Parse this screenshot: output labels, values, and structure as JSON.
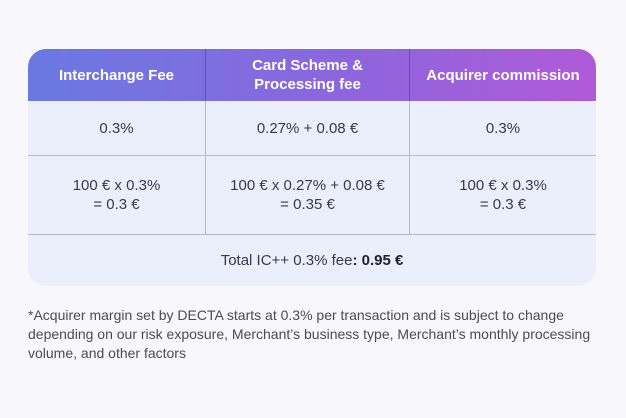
{
  "table": {
    "headers": [
      {
        "line1": "Interchange Fee",
        "line2": ""
      },
      {
        "line1": "Card Scheme &",
        "line2": "Processing fee"
      },
      {
        "line1": "Acquirer commission",
        "line2": ""
      }
    ],
    "rows": [
      [
        {
          "line1": "0.3%",
          "line2": ""
        },
        {
          "line1": "0.27% + 0.08 €",
          "line2": ""
        },
        {
          "line1": "0.3%",
          "line2": ""
        }
      ],
      [
        {
          "line1": "100 € x 0.3%",
          "line2": "= 0.3 €"
        },
        {
          "line1": "100 € x 0.27% + 0.08 €",
          "line2": "= 0.35 €"
        },
        {
          "line1": "100 € x 0.3%",
          "line2": "= 0.3 €"
        }
      ]
    ],
    "total": {
      "label": "Total IC++ 0.3% fee",
      "value": ": 0.95 €"
    }
  },
  "footnote": "*Acquirer margin set by DECTA starts at 0.3% per transaction and is subject to change depending on our risk exposure, Merchant’s business type, Merchant’s monthly processing volume, and other factors",
  "colors": {
    "header_gradient_start": "#6a79e2",
    "header_gradient_end": "#b05ad8",
    "table_background": "#ebeefb",
    "page_background": "#f8f8fc"
  }
}
